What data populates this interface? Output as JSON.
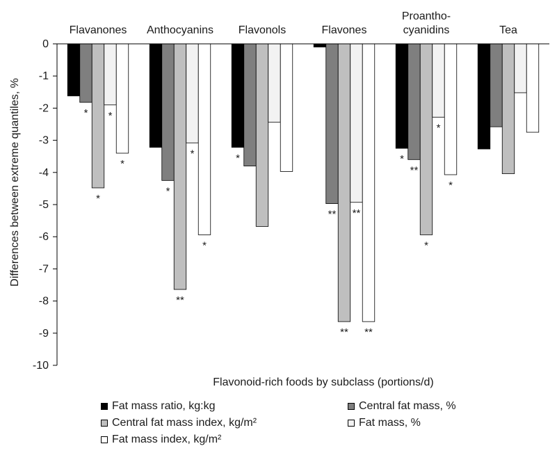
{
  "chart_data": {
    "type": "bar",
    "categories": [
      "Flavanones",
      "Anthocyanins",
      "Flavonols",
      "Flavones",
      "Proantho-\ncyanidins",
      "Tea"
    ],
    "series": [
      {
        "name": "Fat mass ratio, kg:kg",
        "color": "#000000",
        "values": [
          -1.62,
          -3.22,
          -3.22,
          -0.1,
          -3.25,
          -3.27
        ],
        "annotations": [
          "",
          "",
          "*",
          "",
          "*",
          ""
        ]
      },
      {
        "name": "Central fat mass, %",
        "color": "#7f7f7f",
        "values": [
          -1.82,
          -4.25,
          -3.8,
          -4.97,
          -3.6,
          -2.58
        ],
        "annotations": [
          "*",
          "*",
          "",
          "**",
          "**",
          ""
        ]
      },
      {
        "name": "Central fat mass index, kg/m²",
        "color": "#bfbfbf",
        "values": [
          -4.48,
          -7.64,
          -5.68,
          -8.64,
          -5.94,
          -4.04
        ],
        "annotations": [
          "*",
          "**",
          "",
          "**",
          "*",
          ""
        ]
      },
      {
        "name": "Fat mass, %",
        "color": "#f2f2f2",
        "values": [
          -1.9,
          -3.08,
          -2.44,
          -4.93,
          -2.28,
          -1.52
        ],
        "annotations": [
          "*",
          "*",
          "",
          "**",
          "*",
          ""
        ]
      },
      {
        "name": "Fat mass index, kg/m²",
        "color": "#ffffff",
        "values": [
          -3.4,
          -5.94,
          -3.97,
          -8.64,
          -4.07,
          -2.75
        ],
        "annotations": [
          "*",
          "*",
          "",
          "**",
          "*",
          ""
        ]
      }
    ],
    "xlabel": "Flavonoid-rich foods by subclass (portions/d)",
    "ylabel": "Differences between extreme quantiles, %",
    "ylim": [
      -10,
      0
    ],
    "yticks": [
      "0",
      "-1",
      "-2",
      "-3",
      "-4",
      "-5",
      "-6",
      "-7",
      "-8",
      "-9",
      "-10"
    ],
    "grid": false,
    "legend_position": "bottom"
  }
}
